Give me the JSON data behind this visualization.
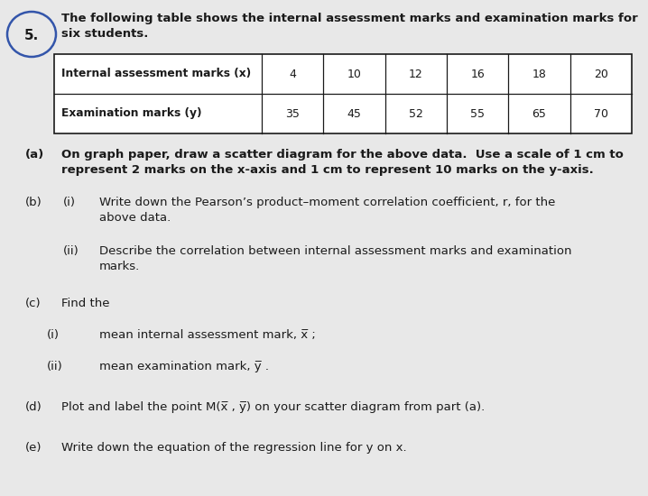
{
  "question_number": "5.",
  "intro_line1": "The following table shows the internal assessment marks and examination marks for",
  "intro_line2": "six students.",
  "table": {
    "row1_label": "Internal assessment marks (x)",
    "row1_values": [
      "4",
      "10",
      "12",
      "16",
      "18",
      "20"
    ],
    "row2_label": "Examination marks (y)",
    "row2_values": [
      "35",
      "45",
      "52",
      "55",
      "65",
      "70"
    ]
  },
  "bg_color": "#e8e8e8",
  "text_color": "#1a1a1a",
  "table_bg": "#ffffff",
  "circle_color": "#3355aa",
  "parts_a_label": "(a)",
  "parts_a_text1": "On graph paper, draw a scatter diagram for the above data.  Use a scale of 1 cm to",
  "parts_a_text2": "represent 2 marks on the x-axis and 1 cm to represent 10 marks on the y-axis.",
  "parts_b_label": "(b)",
  "parts_bi_label": "(i)",
  "parts_bi_text1": "Write down the Pearson’s product–moment correlation coefficient, r, for the",
  "parts_bi_text2": "above data.",
  "parts_bii_label": "(ii)",
  "parts_bii_text1": "Describe the correlation between internal assessment marks and examination",
  "parts_bii_text2": "marks.",
  "parts_c_label": "(c)",
  "parts_c_text": "Find the",
  "parts_ci_label": "(i)",
  "parts_ci_text": "mean internal assessment mark, x̅ ;",
  "parts_cii_label": "(ii)",
  "parts_cii_text": "mean examination mark, y̅ .",
  "parts_d_label": "(d)",
  "parts_d_text": "Plot and label the point M(x̅ , y̅) on your scatter diagram from part (a).",
  "parts_e_label": "(e)",
  "parts_e_text": "Write down the equation of the regression line for y on x."
}
